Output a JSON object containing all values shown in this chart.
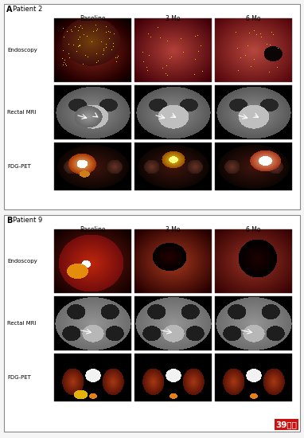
{
  "fig_width": 3.82,
  "fig_height": 5.5,
  "dpi": 100,
  "bg_color": "#f5f5f5",
  "panel_bg": "#ffffff",
  "border_color": "#888888",
  "panel_A_label": "A",
  "panel_B_label": "B",
  "patient_A": "Patient 2",
  "patient_B": "Patient 9",
  "col_labels": [
    "Baseline",
    "3 Mo",
    "6 Mo"
  ],
  "row_labels": [
    "Endoscopy",
    "Rectal MRI",
    "FDG-PET"
  ],
  "watermark": "39肿瘤",
  "outer_border_lw": 1.0,
  "inner_border_lw": 0.5,
  "label_fontsize": 6.0,
  "panel_label_fontsize": 7.0,
  "col_label_fontsize": 5.5,
  "row_label_fontsize": 5.0
}
